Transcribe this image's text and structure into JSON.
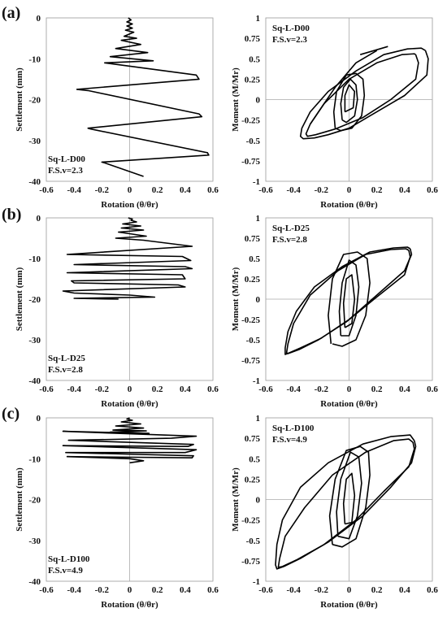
{
  "panel_labels": [
    "(a)",
    "(b)",
    "(c)"
  ],
  "chart_data": [
    {
      "type": "line",
      "panel": "(a)",
      "side": "settlement",
      "ylabel": "Settlement (mm)",
      "xlabel": "Rotation (θ/θr)",
      "xlim": [
        -0.6,
        0.6
      ],
      "ylim": [
        -40,
        0
      ],
      "xticks": [
        "-0.6",
        "-0.4",
        "-0.2",
        "0",
        "0.2",
        "0.4",
        "0.6"
      ],
      "yticks": [
        "-40",
        "-30",
        "-20",
        "-10",
        "0"
      ],
      "annotation": [
        "Sq-L-D00",
        "F.S.v=2.3"
      ],
      "series": [
        {
          "x": [
            -0.01,
            0.01,
            -0.02,
            0.02,
            -0.02,
            0.02,
            -0.03,
            0.03,
            -0.04,
            0.05,
            -0.06,
            0.08,
            -0.1,
            0.13,
            -0.14,
            0.17,
            -0.18,
            0.48,
            0.5,
            -0.38,
            -0.3,
            0.5,
            0.52,
            -0.3,
            -0.28,
            0.56,
            0.57,
            -0.2,
            -0.18,
            0.1
          ],
          "y": [
            0,
            -0.5,
            -1,
            -1.5,
            -2,
            -2.5,
            -3,
            -3.5,
            -4.5,
            -5,
            -5.5,
            -6.5,
            -7.5,
            -8.5,
            -9.5,
            -10.5,
            -11,
            -14,
            -15,
            -17.5,
            -17.8,
            -23.5,
            -24.2,
            -27,
            -27.2,
            -33,
            -33.6,
            -35.3,
            -35.5,
            -38.8
          ]
        }
      ]
    },
    {
      "type": "line",
      "panel": "(a)",
      "side": "moment",
      "ylabel": "Moment (M/Mr)",
      "xlabel": "Rotation (θ/θr)",
      "xlim": [
        -0.6,
        0.6
      ],
      "ylim": [
        -1,
        1
      ],
      "xticks": [
        "-0.6",
        "-0.4",
        "-0.2",
        "0",
        "0.2",
        "0.4",
        "0.6"
      ],
      "yticks": [
        "-1",
        "-0.75",
        "-0.5",
        "-0.25",
        "0",
        "0.25",
        "0.5",
        "0.75",
        "1"
      ],
      "annotation": [
        "Sq-L-D00",
        "F.S.v=2.3"
      ],
      "series": [
        {
          "x": [
            0.55,
            0.57,
            0.56,
            0.4,
            0.15,
            0,
            -0.15,
            -0.25,
            -0.33,
            -0.35,
            -0.34,
            -0.28,
            -0.15,
            0.05,
            0.25,
            0.42,
            0.52,
            0.55
          ],
          "y": [
            0.6,
            0.5,
            0.3,
            0.05,
            -0.2,
            -0.35,
            -0.43,
            -0.47,
            -0.48,
            -0.45,
            -0.35,
            -0.15,
            0.1,
            0.35,
            0.55,
            0.62,
            0.63,
            0.6
          ]
        },
        {
          "x": [
            0.48,
            0.5,
            0.48,
            0.3,
            0.1,
            -0.1,
            -0.24,
            -0.3,
            -0.31,
            -0.28,
            -0.18,
            0,
            0.2,
            0.38,
            0.47,
            0.48
          ],
          "y": [
            0.55,
            0.45,
            0.25,
            0.0,
            -0.22,
            -0.36,
            -0.43,
            -0.45,
            -0.42,
            -0.3,
            -0.05,
            0.25,
            0.45,
            0.55,
            0.56,
            0.55
          ]
        },
        {
          "x": [
            -0.1,
            -0.06,
            0.02,
            0.09,
            0.11,
            0.1,
            0.05,
            -0.02,
            -0.09,
            -0.11,
            -0.1
          ],
          "y": [
            -0.35,
            -0.38,
            -0.35,
            -0.2,
            0.05,
            0.25,
            0.32,
            0.3,
            0.1,
            -0.15,
            -0.35
          ]
        },
        {
          "x": [
            -0.05,
            -0.02,
            0.04,
            0.06,
            0.05,
            0.01,
            -0.04,
            -0.06,
            -0.05
          ],
          "y": [
            -0.25,
            -0.28,
            -0.2,
            0.0,
            0.18,
            0.25,
            0.15,
            -0.05,
            -0.25
          ]
        },
        {
          "x": [
            -0.03,
            0.03,
            0.04,
            0.0,
            -0.03,
            -0.03
          ],
          "y": [
            -0.15,
            -0.1,
            0.1,
            0.18,
            0.05,
            -0.15
          ]
        },
        {
          "x": [
            -0.28,
            -0.1,
            0.05,
            0.2
          ],
          "y": [
            -0.3,
            0.15,
            0.45,
            0.6
          ]
        },
        {
          "x": [
            0.08,
            0.18,
            0.28
          ],
          "y": [
            0.55,
            0.6,
            0.65
          ]
        }
      ]
    },
    {
      "type": "line",
      "panel": "(b)",
      "side": "settlement",
      "ylabel": "Settlement (mm)",
      "xlabel": "Rotation (θ/θr)",
      "xlim": [
        -0.6,
        0.6
      ],
      "ylim": [
        -40,
        0
      ],
      "xticks": [
        "-0.6",
        "-0.4",
        "-0.2",
        "0",
        "0.2",
        "0.4",
        "0.6"
      ],
      "yticks": [
        "-40",
        "-30",
        "-20",
        "-10",
        "0"
      ],
      "annotation": [
        "Sq-L-D25",
        "F.S.v=2.8"
      ],
      "series": [
        {
          "x": [
            -0.01,
            0.02,
            0.01,
            0.05,
            -0.05,
            0.08,
            -0.06,
            0.1,
            -0.08,
            0.12,
            -0.1,
            0.1,
            0.45,
            -0.45,
            0.38,
            0.44,
            -0.4,
            0.4,
            0.45,
            -0.45,
            0.38,
            0.4,
            -0.42,
            -0.4,
            0.35,
            0.4,
            -0.48,
            -0.4,
            0.0,
            0.18,
            -0.4,
            -0.08
          ],
          "y": [
            0,
            -0.3,
            -0.6,
            -1,
            -1.5,
            -2,
            -2.5,
            -3,
            -3.5,
            -4.5,
            -5,
            -5.5,
            -7,
            -9,
            -9.5,
            -10.5,
            -11.5,
            -12,
            -12.5,
            -13.5,
            -14,
            -15,
            -15.5,
            -16,
            -16.5,
            -17,
            -18,
            -18.5,
            -19,
            -19.5,
            -19.8,
            -20
          ]
        }
      ]
    },
    {
      "type": "line",
      "panel": "(b)",
      "side": "moment",
      "ylabel": "Moment (M/Mr)",
      "xlabel": "Rotation (θ/θr)",
      "xlim": [
        -0.6,
        0.6
      ],
      "ylim": [
        -1,
        1
      ],
      "xticks": [
        "-0.6",
        "-0.4",
        "-0.2",
        "0",
        "0.2",
        "0.4",
        "0.6"
      ],
      "yticks": [
        "-1",
        "-0.75",
        "-0.5",
        "-0.25",
        "0",
        "0.25",
        "0.5",
        "0.75",
        "1"
      ],
      "annotation": [
        "Sq-L-D25",
        "F.S.v=2.8"
      ],
      "series": [
        {
          "x": [
            0.44,
            0.45,
            0.4,
            0.2,
            0,
            -0.2,
            -0.35,
            -0.43,
            -0.46,
            -0.46,
            -0.44,
            -0.38,
            -0.25,
            -0.05,
            0.15,
            0.32,
            0.42,
            0.44
          ],
          "y": [
            0.62,
            0.55,
            0.35,
            0.05,
            -0.25,
            -0.48,
            -0.6,
            -0.66,
            -0.68,
            -0.6,
            -0.4,
            -0.15,
            0.15,
            0.4,
            0.58,
            0.63,
            0.64,
            0.62
          ]
        },
        {
          "x": [
            0.43,
            0.44,
            0.4,
            0.18,
            -0.02,
            -0.22,
            -0.36,
            -0.44,
            -0.45,
            -0.44,
            -0.4,
            -0.28,
            -0.08,
            0.12,
            0.3,
            0.41,
            0.43
          ],
          "y": [
            0.6,
            0.52,
            0.3,
            0.0,
            -0.28,
            -0.5,
            -0.62,
            -0.67,
            -0.66,
            -0.55,
            -0.3,
            0.05,
            0.35,
            0.55,
            0.61,
            0.62,
            0.6
          ]
        },
        {
          "x": [
            -0.12,
            -0.05,
            0.05,
            0.12,
            0.15,
            0.13,
            0.06,
            -0.04,
            -0.12,
            -0.15,
            -0.13
          ],
          "y": [
            -0.55,
            -0.58,
            -0.5,
            -0.2,
            0.2,
            0.5,
            0.58,
            0.55,
            0.25,
            -0.2,
            -0.55
          ]
        },
        {
          "x": [
            -0.06,
            0.0,
            0.05,
            0.07,
            0.05,
            0.0,
            -0.05,
            -0.07,
            -0.06
          ],
          "y": [
            -0.45,
            -0.45,
            -0.2,
            0.15,
            0.42,
            0.48,
            0.2,
            -0.15,
            -0.45
          ]
        },
        {
          "x": [
            -0.03,
            0.02,
            0.04,
            0.02,
            -0.02,
            -0.04,
            -0.03
          ],
          "y": [
            -0.35,
            -0.3,
            0.0,
            0.3,
            0.25,
            -0.05,
            -0.35
          ]
        }
      ]
    },
    {
      "type": "line",
      "panel": "(c)",
      "side": "settlement",
      "ylabel": "Settlement (mm)",
      "xlabel": "Rotation (θ/θr)",
      "xlim": [
        -0.6,
        0.6
      ],
      "ylim": [
        -40,
        0
      ],
      "xticks": [
        "-0.6",
        "-0.4",
        "-0.2",
        "0",
        "0.2",
        "0.4",
        "0.6"
      ],
      "yticks": [
        "-40",
        "-30",
        "-20",
        "-10",
        "0"
      ],
      "annotation": [
        "Sq-L-D100",
        "F.S.v=4.9"
      ],
      "series": [
        {
          "x": [
            0,
            -0.02,
            0.02,
            -0.06,
            0.08,
            -0.1,
            0.1,
            -0.12,
            0.12,
            -0.14,
            0.14,
            -0.48,
            0.48,
            0.3,
            -0.44,
            0.46,
            0.42,
            -0.48,
            0.48,
            0.4,
            -0.46,
            0.46,
            0.45,
            -0.45,
            0.0,
            0.1,
            0.0
          ],
          "y": [
            0,
            -0.3,
            -0.6,
            -1,
            -1.5,
            -2,
            -2.5,
            -3,
            -3.2,
            -3.5,
            -3.8,
            -3.3,
            -4.5,
            -5,
            -5.5,
            -6.5,
            -7,
            -6.8,
            -7.8,
            -8.5,
            -8.5,
            -9.3,
            -9.8,
            -9.5,
            -10,
            -10.5,
            -11
          ]
        }
      ]
    },
    {
      "type": "line",
      "panel": "(c)",
      "side": "moment",
      "ylabel": "Moment (M/Mr)",
      "xlabel": "Rotation (θ/θr)",
      "xlim": [
        -0.6,
        0.6
      ],
      "ylim": [
        -1,
        1
      ],
      "xticks": [
        "-0.6",
        "-0.4",
        "-0.2",
        "0",
        "0.2",
        "0.4",
        "0.6"
      ],
      "yticks": [
        "-1",
        "-0.75",
        "-0.5",
        "-0.25",
        "0",
        "0.25",
        "0.5",
        "0.75",
        "1"
      ],
      "annotation": [
        "Sq-L-D100",
        "F.S.v=4.9"
      ],
      "series": [
        {
          "x": [
            0.47,
            0.48,
            0.45,
            0.3,
            0.1,
            -0.15,
            -0.35,
            -0.47,
            -0.52,
            -0.53,
            -0.52,
            -0.48,
            -0.35,
            -0.15,
            0.1,
            0.3,
            0.44,
            0.47
          ],
          "y": [
            0.72,
            0.65,
            0.45,
            0.15,
            -0.2,
            -0.52,
            -0.72,
            -0.82,
            -0.85,
            -0.8,
            -0.55,
            -0.25,
            0.15,
            0.45,
            0.68,
            0.77,
            0.79,
            0.72
          ]
        },
        {
          "x": [
            0.46,
            0.47,
            0.43,
            0.25,
            0.05,
            -0.18,
            -0.38,
            -0.48,
            -0.51,
            -0.5,
            -0.46,
            -0.32,
            -0.12,
            0.12,
            0.32,
            0.43,
            0.46
          ],
          "y": [
            0.7,
            0.62,
            0.4,
            0.1,
            -0.25,
            -0.55,
            -0.74,
            -0.82,
            -0.83,
            -0.72,
            -0.45,
            -0.1,
            0.3,
            0.58,
            0.72,
            0.74,
            0.7
          ]
        },
        {
          "x": [
            -0.12,
            -0.05,
            0.05,
            0.12,
            0.15,
            0.14,
            0.08,
            -0.02,
            -0.1,
            -0.14,
            -0.12
          ],
          "y": [
            -0.55,
            -0.58,
            -0.48,
            -0.1,
            0.3,
            0.58,
            0.65,
            0.6,
            0.25,
            -0.2,
            -0.55
          ]
        },
        {
          "x": [
            -0.08,
            0.0,
            0.06,
            0.09,
            0.07,
            0.01,
            -0.06,
            -0.09,
            -0.08
          ],
          "y": [
            -0.45,
            -0.48,
            -0.2,
            0.2,
            0.52,
            0.58,
            0.25,
            -0.15,
            -0.45
          ]
        },
        {
          "x": [
            -0.03,
            0.02,
            0.04,
            0.02,
            -0.02,
            -0.04,
            -0.03
          ],
          "y": [
            -0.3,
            -0.28,
            0.05,
            0.32,
            0.25,
            -0.05,
            -0.3
          ]
        }
      ]
    }
  ]
}
